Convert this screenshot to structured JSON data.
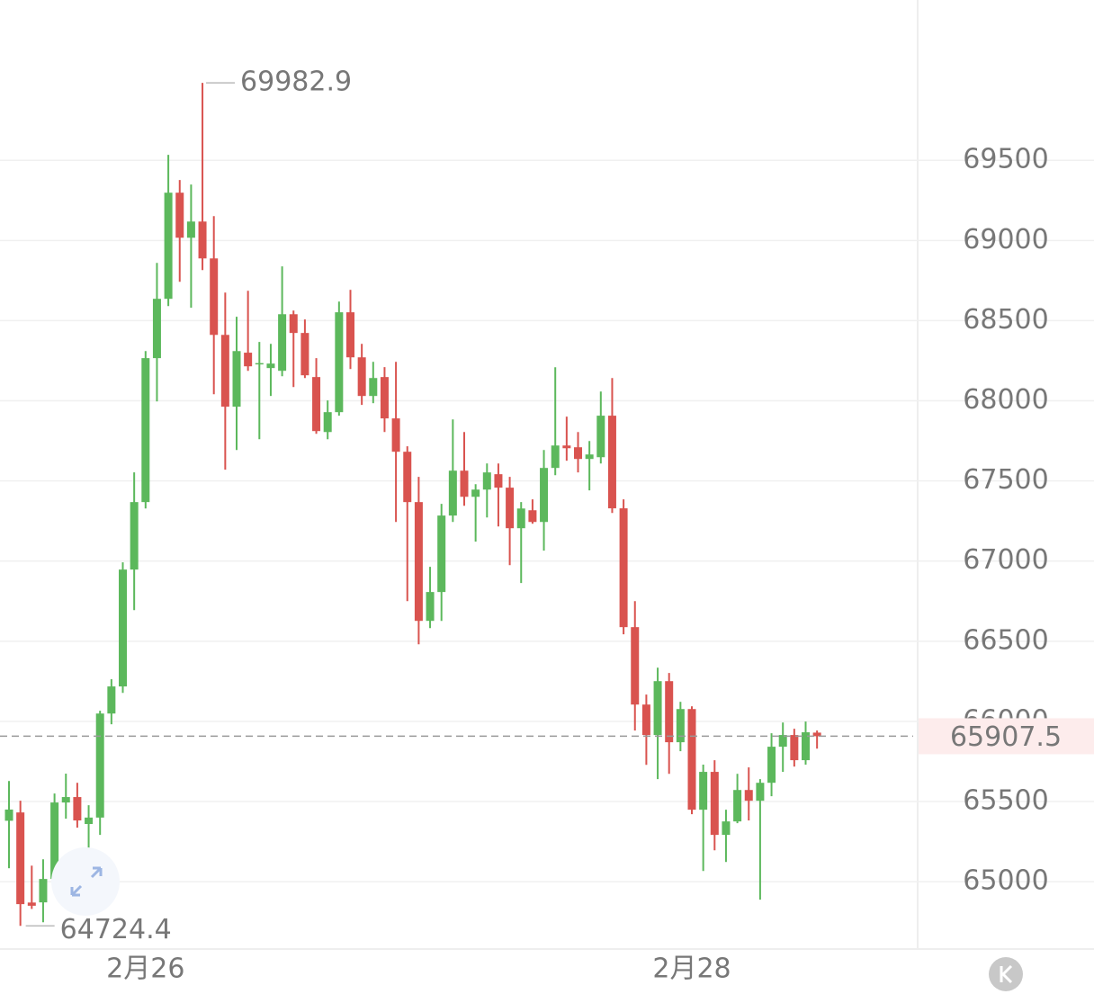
{
  "chart_data": {
    "type": "candlestick",
    "categories": [
      null,
      null,
      null,
      null,
      null,
      null,
      null,
      null,
      null,
      null,
      null,
      null,
      "2月26",
      null,
      null,
      null,
      null,
      null,
      null,
      null,
      null,
      null,
      null,
      null,
      null,
      null,
      null,
      null,
      null,
      null,
      null,
      null,
      null,
      null,
      null,
      null,
      null,
      null,
      null,
      null,
      null,
      null,
      null,
      null,
      null,
      null,
      null,
      null,
      null,
      null,
      null,
      null,
      null,
      null,
      null,
      null,
      null,
      null,
      null,
      null,
      "2月28",
      null,
      null,
      null,
      null,
      null,
      null,
      null,
      null,
      null,
      null,
      null
    ],
    "open": [
      65380,
      65432,
      64870,
      64871,
      65017,
      65494,
      65528,
      65360,
      65400,
      66049,
      66218,
      66947,
      67368,
      68266,
      68636,
      69298,
      69017,
      69118,
      68888,
      68411,
      67963,
      68300,
      68228,
      68204,
      68187,
      68540,
      68423,
      68148,
      67805,
      67929,
      68552,
      68271,
      68030,
      68148,
      67890,
      67682,
      67368,
      66627,
      66807,
      67284,
      67564,
      67401,
      67446,
      67542,
      67458,
      67205,
      67317,
      67244,
      67581,
      67721,
      67710,
      67637,
      67648,
      67907,
      67329,
      66588,
      66105,
      65915,
      66251,
      65870,
      66077,
      65449,
      65685,
      65292,
      65376,
      65572,
      65505,
      65617,
      65842,
      65915,
      65758,
      65930
    ],
    "high": [
      65628,
      65505,
      65100,
      65140,
      65550,
      65674,
      65617,
      65477,
      66066,
      66263,
      66992,
      67553,
      68310,
      68860,
      69534,
      69377,
      69349,
      69982.9,
      69152,
      68675,
      68524,
      68686,
      68367,
      68355,
      68838,
      68563,
      68507,
      68266,
      68002,
      68619,
      68692,
      68355,
      68243,
      68210,
      68243,
      67716,
      67525,
      66964,
      67357,
      67884,
      67805,
      67480,
      67609,
      67609,
      67525,
      67368,
      67385,
      67693,
      68209,
      67901,
      67805,
      67749,
      68058,
      68142,
      67385,
      66750,
      66167,
      66335,
      66302,
      66122,
      66094,
      65730,
      65758,
      65449,
      65673,
      65713,
      65640,
      65926,
      65993,
      65954,
      65999,
      65943
    ],
    "low": [
      65084,
      64724.4,
      64830,
      64747,
      64944,
      65393,
      65337,
      65170,
      65292,
      65982,
      66178,
      66694,
      67328,
      67996,
      68591,
      68742,
      68580,
      68815,
      68041,
      67570,
      67693,
      68187,
      67760,
      68030,
      68153,
      68086,
      68142,
      67794,
      67760,
      67907,
      68198,
      67974,
      67985,
      67805,
      67244,
      66750,
      66481,
      66582,
      66627,
      67244,
      67345,
      67121,
      67272,
      67216,
      66975,
      66863,
      67233,
      67065,
      67536,
      67626,
      67553,
      67441,
      67609,
      67300,
      66543,
      65943,
      65729,
      65640,
      65673,
      65814,
      65421,
      65067,
      65196,
      65123,
      65365,
      65382,
      64888,
      65533,
      65685,
      65718,
      65730,
      65830
    ],
    "close": [
      65450,
      64860,
      64850,
      65017,
      65494,
      65528,
      65382,
      65400,
      66049,
      66218,
      66947,
      67368,
      68266,
      68636,
      69298,
      69017,
      69118,
      68888,
      68411,
      67963,
      68310,
      68215,
      68235,
      68232,
      68540,
      68423,
      68159,
      67811,
      67929,
      68552,
      68271,
      68030,
      68142,
      67890,
      67682,
      67368,
      66627,
      66807,
      67284,
      67564,
      67401,
      67446,
      67553,
      67458,
      67205,
      67328,
      67244,
      67581,
      67721,
      67704,
      67637,
      67665,
      67907,
      67329,
      66588,
      66105,
      65915,
      66251,
      65870,
      66077,
      65449,
      65685,
      65292,
      65376,
      65572,
      65505,
      65617,
      65842,
      65915,
      65758,
      65932,
      65907.5
    ],
    "up_color": "#5cb85c",
    "down_color": "#d9534f",
    "last_price": 65907.5,
    "high_marker": 69982.9,
    "low_marker": 64724.4,
    "ylim": [
      64580,
      70500
    ],
    "yticks": [
      65000,
      65500,
      66000,
      66500,
      67000,
      67500,
      68000,
      68500,
      69000,
      69500
    ],
    "grid": true
  }
}
